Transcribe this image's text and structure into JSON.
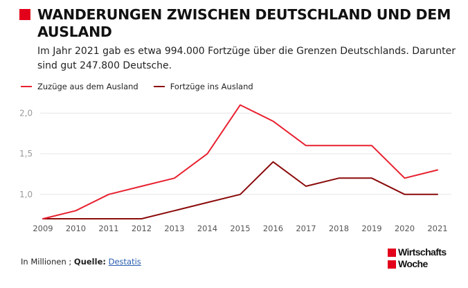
{
  "title": "WANDERUNGEN ZWISCHEN DEUTSCHLAND UND DEM AUSLAND",
  "subtitle": "Im Jahr 2021 gab es etwa 994.000 Fortzüge über die Grenzen Deutschlands. Darunter sind gut 247.800 Deutsche.",
  "footer": {
    "unit": "In Millionen ;",
    "source_label": "Quelle:",
    "source_link": "Destatis"
  },
  "logo": {
    "line1": "Wirtschafts",
    "line2": "Woche"
  },
  "colors": {
    "brand": "#e3001b",
    "zuzuege": "#e8202f",
    "fortzuege": "#8b0a0a",
    "grid": "#e5e5e5",
    "tick": "#9a9a9a"
  },
  "chart_data": {
    "type": "line",
    "title": "WANDERUNGEN ZWISCHEN DEUTSCHLAND UND DEM AUSLAND",
    "xlabel": "",
    "ylabel": "In Millionen",
    "x": [
      "2009",
      "2010",
      "2011",
      "2012",
      "2013",
      "2014",
      "2015",
      "2016",
      "2017",
      "2018",
      "2019",
      "2020",
      "2021"
    ],
    "series": [
      {
        "name": "Zuzüge aus dem Ausland",
        "color": "#e8202f",
        "values": [
          0.7,
          0.8,
          1.0,
          1.1,
          1.2,
          1.5,
          2.1,
          1.9,
          1.6,
          1.6,
          1.6,
          1.2,
          1.3
        ]
      },
      {
        "name": "Fortzüge ins Ausland",
        "color": "#8b0a0a",
        "values": [
          0.7,
          0.7,
          0.7,
          0.7,
          0.8,
          0.9,
          1.0,
          1.4,
          1.1,
          1.2,
          1.2,
          1.0,
          1.0
        ]
      }
    ],
    "y_ticks": [
      1.0,
      1.5,
      2.0
    ],
    "y_tick_labels": [
      "1,0",
      "1,5",
      "2,0"
    ],
    "ylim": [
      0.7,
      2.25
    ],
    "grid": true,
    "legend": "top-left"
  }
}
